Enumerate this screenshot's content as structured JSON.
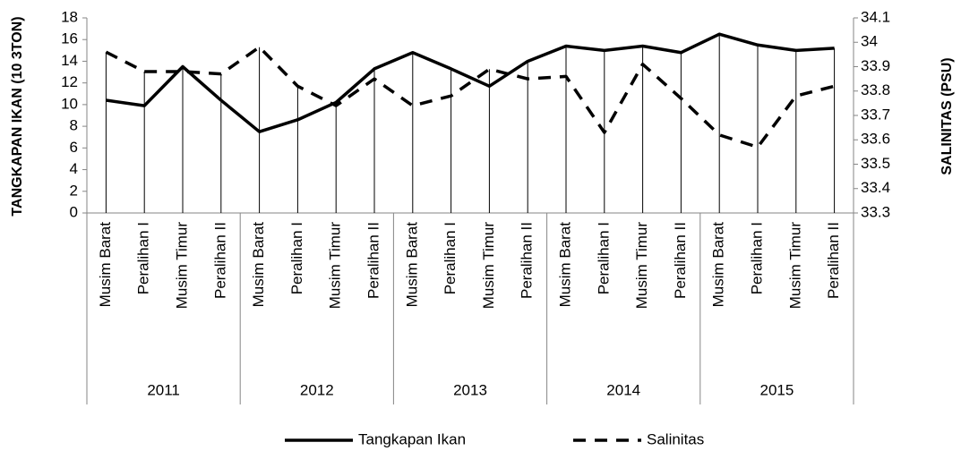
{
  "chart_data": {
    "type": "line",
    "categories": [
      "Musim Barat",
      "Peralihan I",
      "Musim Timur",
      "Peralihan II",
      "Musim Barat",
      "Peralihan I",
      "Musim Timur",
      "Peralihan II",
      "Musim Barat",
      "Peralihan I",
      "Musim Timur",
      "Peralihan II",
      "Musim Barat",
      "Peralihan I",
      "Musim Timur",
      "Peralihan II",
      "Musim Barat",
      "Peralihan I",
      "Musim Timur",
      "Peralihan II"
    ],
    "years": [
      "2011",
      "2012",
      "2013",
      "2014",
      "2015"
    ],
    "y_label": "TANGKAPAN IKAN (10 3TON)",
    "y2_label": "SALINITAS (PSU)",
    "ylim": [
      0,
      18
    ],
    "yticks": [
      0,
      2,
      4,
      6,
      8,
      10,
      12,
      14,
      16,
      18
    ],
    "y2lim": [
      33.3,
      34.1
    ],
    "y2ticks": [
      33.3,
      33.4,
      33.5,
      33.6,
      33.7,
      33.8,
      33.9,
      34,
      34.1
    ],
    "series": [
      {
        "name": "Tangkapan Ikan",
        "color": "#000000",
        "dash": "solid",
        "values": [
          10.4,
          9.9,
          13.5,
          10.4,
          7.5,
          8.6,
          10.2,
          13.3,
          14.8,
          13.3,
          11.7,
          14.0,
          15.4,
          15.0,
          15.4,
          14.8,
          16.5,
          15.5,
          15.0,
          15.2
        ]
      },
      {
        "name": "Salinitas",
        "color": "#000000",
        "dash": "dashed",
        "axis": "y2",
        "values": [
          33.96,
          33.88,
          33.88,
          33.87,
          33.98,
          33.82,
          33.74,
          33.85,
          33.74,
          33.78,
          33.89,
          33.85,
          33.86,
          33.63,
          33.91,
          33.77,
          33.62,
          33.57,
          33.78,
          33.82
        ]
      }
    ],
    "drop_lines": true,
    "legend": "bottom"
  }
}
